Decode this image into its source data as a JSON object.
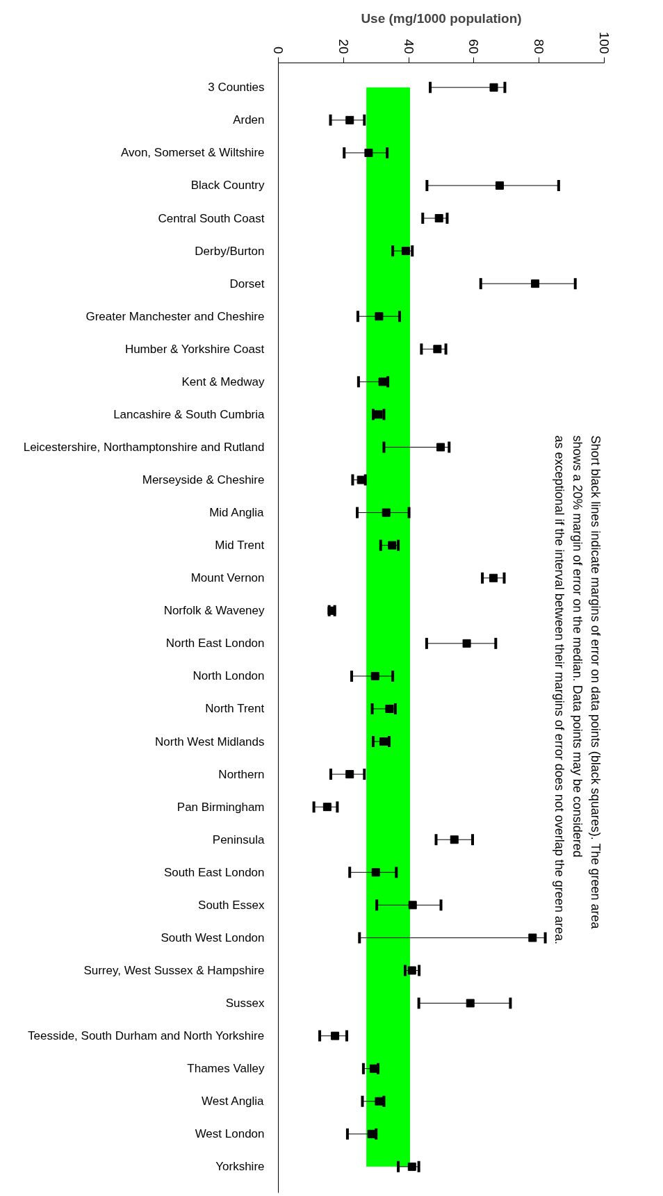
{
  "chart_data": {
    "type": "scatter",
    "orientation": "horizontal",
    "xlabel": "Use (mg/1000 population)",
    "marker": "square",
    "color": "#000000",
    "categories": [
      "3 Counties",
      "Arden",
      "Avon, Somerset & Wiltshire",
      "Black Country",
      "Central South Coast",
      "Derby/Burton",
      "Dorset",
      "Greater Manchester and Cheshire",
      "Humber & Yorkshire Coast",
      "Kent & Medway",
      "Lancashire & South Cumbria",
      "Leicestershire, Northamptonshire and Rutland",
      "Merseyside & Cheshire",
      "Mid Anglia",
      "Mid Trent",
      "Mount Vernon",
      "Norfolk & Waveney",
      "North East London",
      "North London",
      "North Trent",
      "North West Midlands",
      "Northern",
      "Pan Birmingham",
      "Peninsula",
      "South East London",
      "South Essex",
      "South West London",
      "Surrey, West Sussex & Hampshire",
      "Sussex",
      "Teesside, South Durham and North Yorkshire",
      "Thames Valley",
      "West Anglia",
      "West London",
      "Yorkshire"
    ],
    "values": [
      66.1,
      21.9,
      27.7,
      67.9,
      49.3,
      39.1,
      78.8,
      30.9,
      48.8,
      32.0,
      30.7,
      49.8,
      25.4,
      33.1,
      34.9,
      66.0,
      16.4,
      57.8,
      29.7,
      34.1,
      32.3,
      21.9,
      15.0,
      54.0,
      29.9,
      41.2,
      78.0,
      41.0,
      58.9,
      17.4,
      29.3,
      30.9,
      28.6,
      41.0
    ],
    "errors": [
      [
        46.6,
        69.5
      ],
      [
        16.0,
        26.4
      ],
      [
        20.2,
        33.4
      ],
      [
        45.6,
        86.0
      ],
      [
        44.3,
        51.8
      ],
      [
        35.1,
        41.1
      ],
      [
        62.1,
        91.1
      ],
      [
        24.4,
        37.2
      ],
      [
        43.9,
        51.4
      ],
      [
        24.6,
        33.6
      ],
      [
        29.1,
        32.4
      ],
      [
        32.4,
        52.4
      ],
      [
        22.8,
        26.7
      ],
      [
        24.2,
        40.1
      ],
      [
        31.4,
        36.8
      ],
      [
        62.6,
        69.3
      ],
      [
        15.6,
        17.3
      ],
      [
        45.5,
        66.7
      ],
      [
        22.5,
        35.1
      ],
      [
        28.8,
        35.9
      ],
      [
        29.1,
        34.0
      ],
      [
        16.1,
        26.4
      ],
      [
        10.9,
        18.1
      ],
      [
        48.4,
        59.6
      ],
      [
        21.9,
        36.2
      ],
      [
        30.2,
        49.9
      ],
      [
        24.9,
        81.9
      ],
      [
        38.9,
        43.2
      ],
      [
        43.1,
        71.2
      ],
      [
        12.7,
        21.0
      ],
      [
        26.1,
        30.6
      ],
      [
        25.8,
        32.4
      ],
      [
        21.2,
        30.0
      ],
      [
        36.8,
        43.1
      ]
    ],
    "xlim": [
      0,
      100
    ],
    "xticks": [
      0,
      20,
      40,
      60,
      80,
      100
    ],
    "bands": [
      {
        "axis": "x",
        "from": 27.0,
        "to": 40.4,
        "color": "#00ff00"
      }
    ],
    "annotations": [
      "Short black lines indicate margins of error on data points (black squares).  The green area\nshows a 20% margin of error on the median.  Data points may be considered\nas exceptional if the interval between their margins of error does not overlap the green area."
    ]
  }
}
